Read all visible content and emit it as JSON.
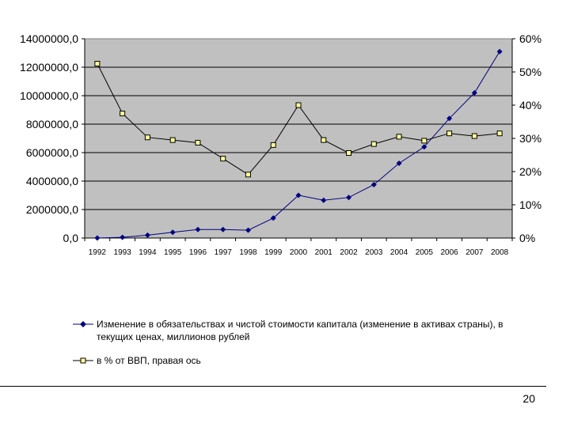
{
  "chart_data": {
    "type": "line",
    "x": [
      "1992",
      "1993",
      "1994",
      "1995",
      "1996",
      "1997",
      "1998",
      "1999",
      "2000",
      "2001",
      "2002",
      "2003",
      "2004",
      "2005",
      "2006",
      "2007",
      "2008"
    ],
    "series": [
      {
        "name": "Изменение в обязательствах и чистой стоимости капитала (изменение в активах страны), в текущих ценах, миллионов рублей",
        "axis": "left",
        "marker": "diamond",
        "color": "#00007F",
        "values": [
          0,
          50000,
          200000,
          400000,
          600000,
          600000,
          550000,
          1400000,
          3000000,
          2650000,
          2850000,
          3750000,
          5250000,
          6400000,
          8400000,
          10200000,
          13100000
        ]
      },
      {
        "name": "в % от ВВП, правая ось",
        "axis": "right",
        "marker": "square",
        "color": "#FFFF99",
        "values": [
          52.5,
          37.5,
          30.3,
          29.5,
          28.7,
          23.9,
          19.1,
          28.0,
          40.0,
          29.5,
          25.6,
          28.3,
          30.5,
          29.3,
          31.5,
          30.7,
          31.5
        ]
      }
    ],
    "ylim": [
      0,
      14000000
    ],
    "y_ticks": [
      "14000000,0",
      "12000000,0",
      "10000000,0",
      "8000000,0",
      "6000000,0",
      "4000000,0",
      "2000000,0",
      "0,0"
    ],
    "y2lim": [
      0,
      60
    ],
    "y2_ticks": [
      "60%",
      "50%",
      "40%",
      "30%",
      "20%",
      "10%",
      "0%"
    ],
    "grid": true,
    "plot_background": "#C0C0C0",
    "legend_position": "bottom"
  },
  "legend": {
    "series1_label": "Изменение в обязательствах и чистой стоимости капитала (изменение в активах страны), в текущих ценах, миллионов рублей",
    "series2_label": "в % от ВВП, правая ось"
  },
  "page_number": "20"
}
